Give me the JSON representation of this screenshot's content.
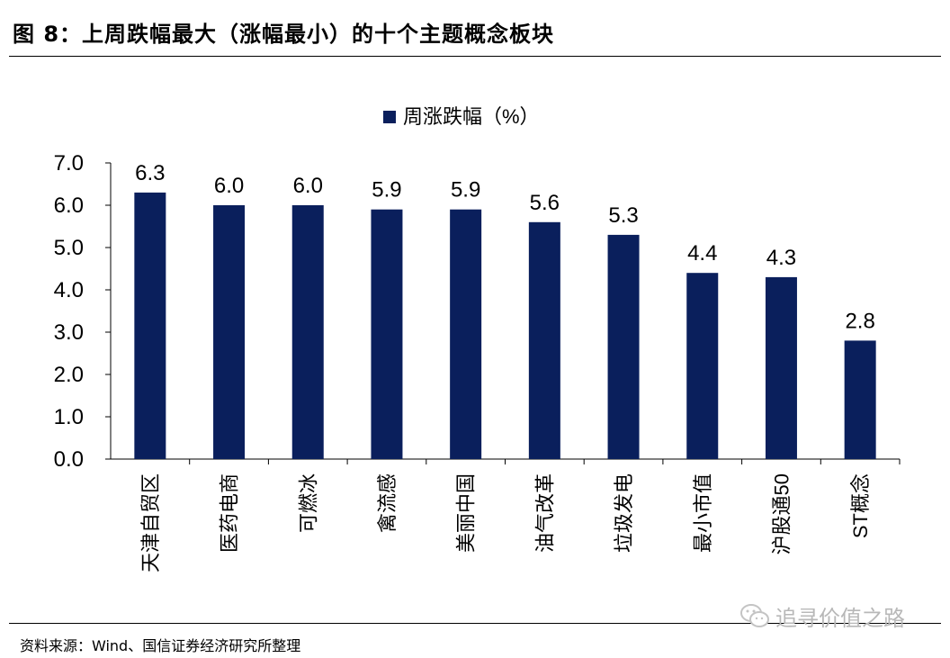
{
  "header": {
    "title": "图 8：上周跌幅最大（涨幅最小）的十个主题概念板块"
  },
  "footer": {
    "source": "资料来源：Wind、国信证券经济研究所整理",
    "watermark": "追寻价值之路",
    "watermark_icon": "wechat-icon"
  },
  "chart_data": {
    "type": "bar",
    "categories": [
      "天津自贸区",
      "医药电商",
      "可燃冰",
      "禽流感",
      "美丽中国",
      "油气改革",
      "垃圾发电",
      "最小市值",
      "沪股通50",
      "ST概念"
    ],
    "series": [
      {
        "name": "周涨跌幅（%）",
        "values": [
          6.3,
          6.0,
          6.0,
          5.9,
          5.9,
          5.6,
          5.3,
          4.4,
          4.3,
          2.8
        ],
        "data_labels": [
          "6.3",
          "6.0",
          "6.0",
          "5.9",
          "5.9",
          "5.6",
          "5.3",
          "4.4",
          "4.3",
          "2.8"
        ],
        "color": "#0a1f5c"
      }
    ],
    "yticks": [
      "0.0",
      "1.0",
      "2.0",
      "3.0",
      "4.0",
      "5.0",
      "6.0",
      "7.0"
    ],
    "ylim": [
      0,
      7
    ],
    "title": "",
    "xlabel": "",
    "ylabel": "",
    "legend": "top-center",
    "grid": false
  }
}
